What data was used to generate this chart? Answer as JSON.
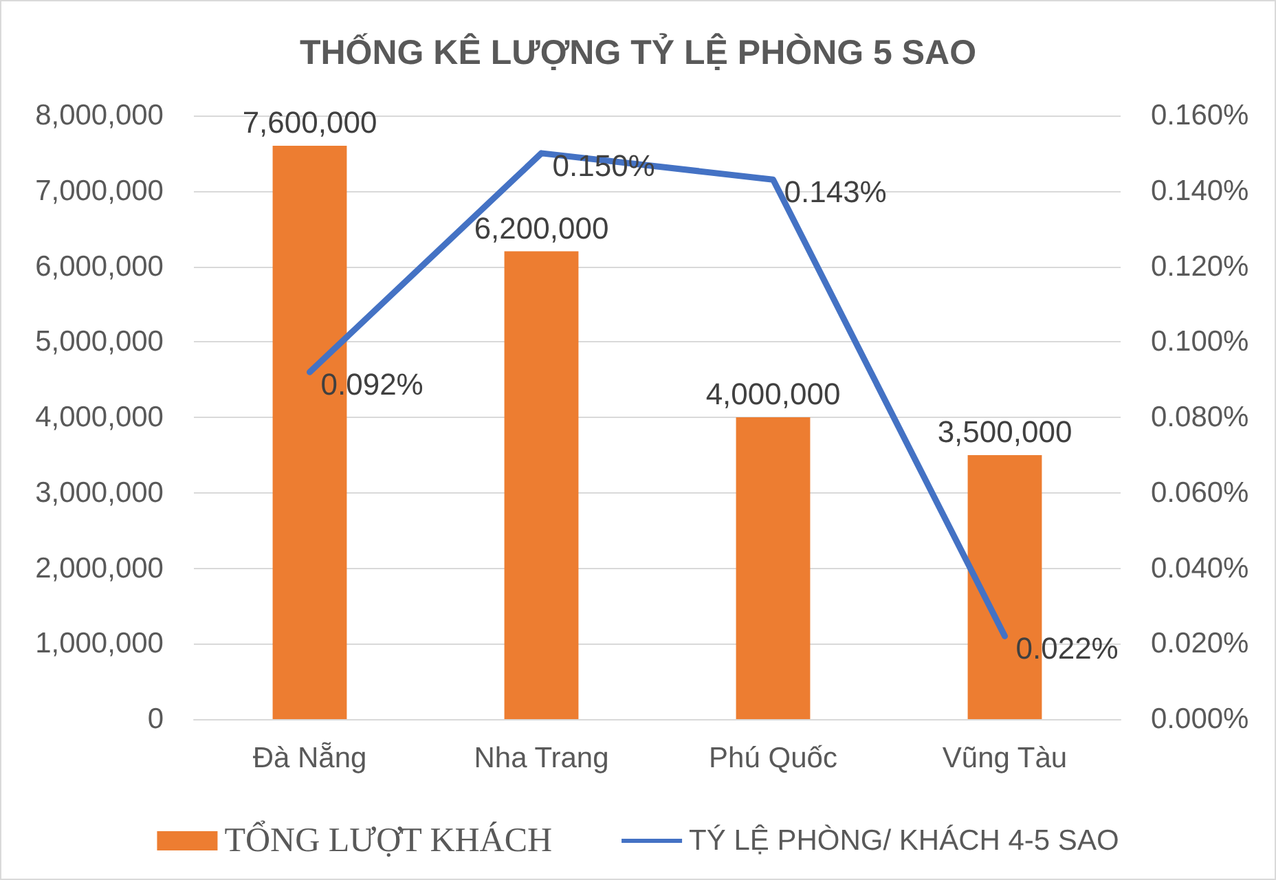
{
  "chart_data": {
    "type": "bar",
    "title": "THỐNG KÊ LƯỢNG TỶ LỆ PHÒNG 5 SAO",
    "categories": [
      "Đà Nẵng",
      "Nha Trang",
      "Phú Quốc",
      "Vũng Tàu"
    ],
    "series": [
      {
        "name": "TỔNG LƯỢT KHÁCH",
        "color": "#ed7d31",
        "values": [
          7600000,
          6200000,
          4000000,
          3500000
        ],
        "value_labels": [
          "7,600,000",
          "6,200,000",
          "4,000,000",
          "3,500,000"
        ]
      },
      {
        "name": "TÝ LỆ PHÒNG/ KHÁCH 4-5 SAO",
        "type": "line",
        "axis": "y2",
        "color": "#4472c4",
        "values": [
          0.092,
          0.15,
          0.143,
          0.022
        ],
        "value_labels": [
          "0.092%",
          "0.150%",
          "0.143%",
          "0.022%"
        ]
      }
    ],
    "ylim": [
      0,
      8000000
    ],
    "yticks": [
      {
        "value": 0,
        "label": "0"
      },
      {
        "value": 1000000,
        "label": "1,000,000"
      },
      {
        "value": 2000000,
        "label": "2,000,000"
      },
      {
        "value": 3000000,
        "label": "3,000,000"
      },
      {
        "value": 4000000,
        "label": "4,000,000"
      },
      {
        "value": 5000000,
        "label": "5,000,000"
      },
      {
        "value": 6000000,
        "label": "6,000,000"
      },
      {
        "value": 7000000,
        "label": "7,000,000"
      },
      {
        "value": 8000000,
        "label": "8,000,000"
      }
    ],
    "y2lim": [
      0,
      0.16
    ],
    "y2ticks": [
      {
        "value": 0,
        "label": "0.000%"
      },
      {
        "value": 0.02,
        "label": "0.020%"
      },
      {
        "value": 0.04,
        "label": "0.040%"
      },
      {
        "value": 0.06,
        "label": "0.060%"
      },
      {
        "value": 0.08,
        "label": "0.080%"
      },
      {
        "value": 0.1,
        "label": "0.100%"
      },
      {
        "value": 0.12,
        "label": "0.120%"
      },
      {
        "value": 0.14,
        "label": "0.140%"
      },
      {
        "value": 0.16,
        "label": "0.160%"
      }
    ],
    "grid": "y",
    "legend": "bottom",
    "marker": "none",
    "line_style": "solid"
  }
}
